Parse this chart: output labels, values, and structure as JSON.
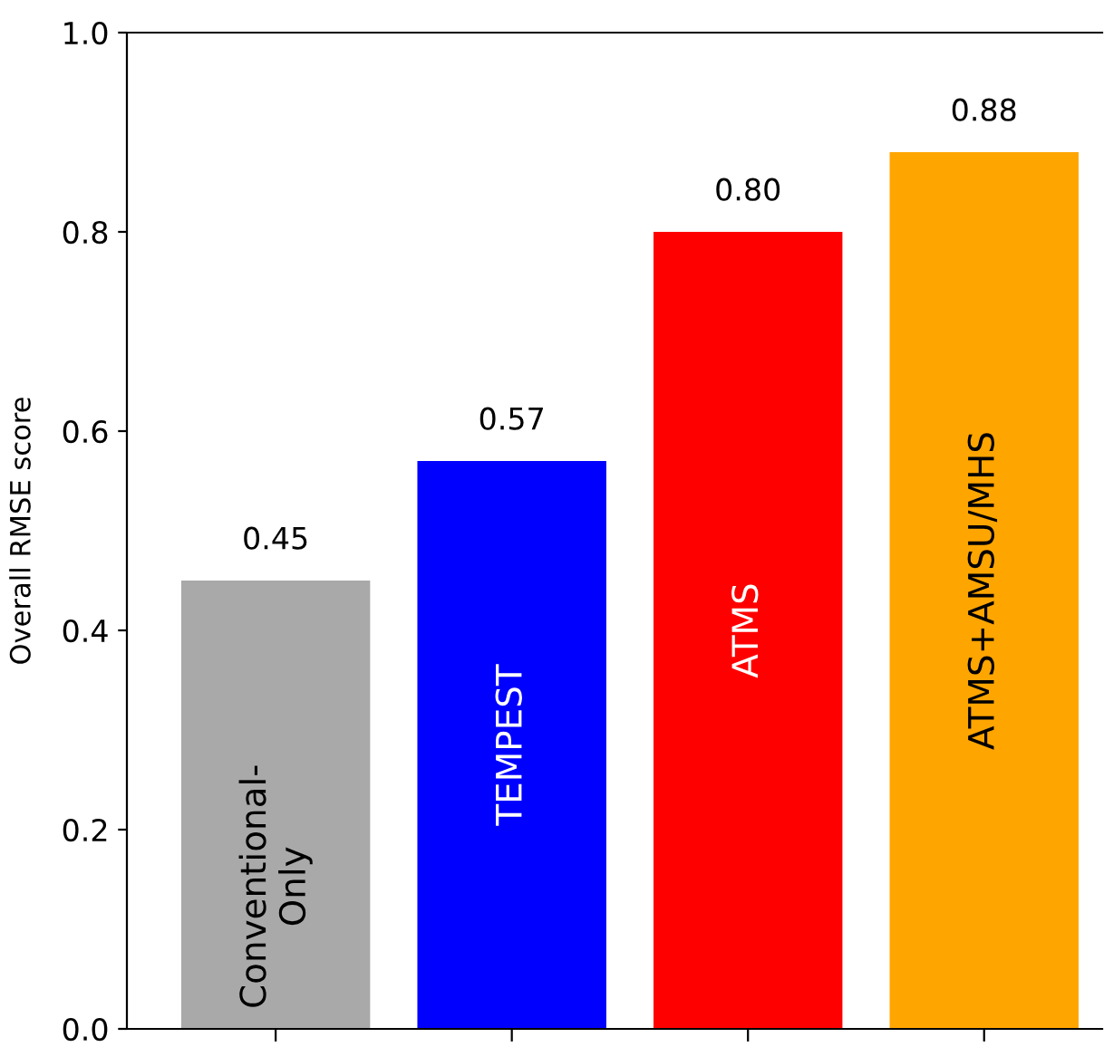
{
  "chart_data": {
    "type": "bar",
    "ylabel": "Overall RMSE score",
    "categories": [
      "Conventional-\nOnly",
      "TEMPEST",
      "ATMS",
      "ATMS+AMSU/MHS"
    ],
    "values": [
      0.45,
      0.57,
      0.8,
      0.88
    ],
    "colors": [
      "#a9a9a9",
      "#0000ff",
      "#ff0000",
      "#ffa500"
    ],
    "value_labels": [
      "0.45",
      "0.57",
      "0.80",
      "0.88"
    ],
    "ylim": [
      0,
      1.0
    ],
    "yticks": [
      {
        "value": 0,
        "label": "0.0"
      },
      {
        "value": 0.2,
        "label": "0.2"
      },
      {
        "value": 0.4,
        "label": "0.4"
      },
      {
        "value": 0.6,
        "label": "0.6"
      },
      {
        "value": 0.8,
        "label": "0.8"
      },
      {
        "value": 1.0,
        "label": "1.0"
      }
    ],
    "grid": false,
    "legend": false
  }
}
